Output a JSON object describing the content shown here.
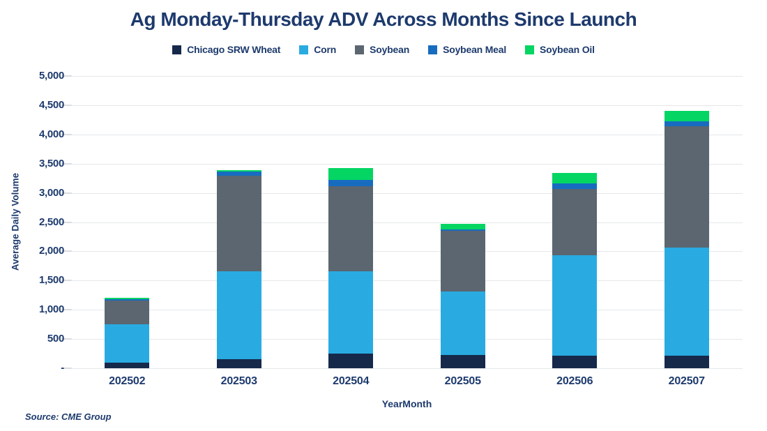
{
  "title": "Ag Monday-Thursday ADV Across Months Since Launch",
  "source_note": "Source: CME Group",
  "text_color": "#1d3a6d",
  "grid_color": "#e4e7ea",
  "chart_data": {
    "type": "bar",
    "stacked": true,
    "title": "Ag Monday-Thursday ADV Across Months Since Launch",
    "xlabel": "YearMonth",
    "ylabel": "Average Daily Volume",
    "ylim": [
      0,
      5000
    ],
    "ytick_step": 500,
    "ytick_labels": [
      "5,000",
      "4,500",
      "4,000",
      "3,500",
      "3,000",
      "2,500",
      "2,000",
      "1,500",
      "1,000",
      "500",
      "-"
    ],
    "grid": "horizontal",
    "legend_position": "top",
    "categories": [
      "202502",
      "202503",
      "202504",
      "202505",
      "202506",
      "202507"
    ],
    "series": [
      {
        "name": "Chicago SRW Wheat",
        "color": "#16294b",
        "values": [
          100,
          150,
          250,
          230,
          220,
          220
        ]
      },
      {
        "name": "Corn",
        "color": "#29abe2",
        "values": [
          650,
          1510,
          1410,
          1080,
          1710,
          1840
        ]
      },
      {
        "name": "Soybean",
        "color": "#5b6670",
        "values": [
          410,
          1630,
          1450,
          1040,
          1140,
          2080
        ]
      },
      {
        "name": "Soybean Meal",
        "color": "#176cc0",
        "values": [
          20,
          70,
          110,
          20,
          90,
          80
        ]
      },
      {
        "name": "Soybean Oil",
        "color": "#04d563",
        "values": [
          30,
          30,
          210,
          100,
          180,
          190
        ]
      }
    ],
    "totals": [
      1210,
      3390,
      3430,
      2470,
      3340,
      4410
    ]
  }
}
